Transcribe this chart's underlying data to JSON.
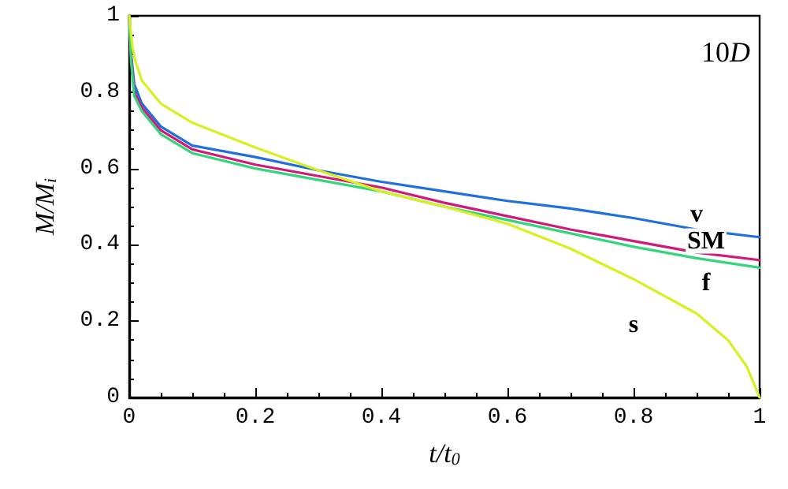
{
  "chart_data": {
    "type": "line",
    "xlabel": "t/t$_{0}$",
    "ylabel": "M/M$_{i}$",
    "annotations": [
      "10D"
    ],
    "xlim": [
      0,
      1
    ],
    "ylim": [
      0,
      1
    ],
    "xticks": [
      0,
      0.2,
      0.4,
      0.6,
      0.8,
      1
    ],
    "yticks": [
      0,
      0.2,
      0.4,
      0.6,
      0.8,
      1
    ],
    "grid": false,
    "legend": false,
    "marker": "none",
    "line_style": "solid",
    "series": [
      {
        "name": "v",
        "color": "#1f6fe0",
        "x": [
          0,
          0.003,
          0.008,
          0.02,
          0.05,
          0.1,
          0.2,
          0.3,
          0.4,
          0.5,
          0.6,
          0.7,
          0.8,
          0.9,
          1
        ],
        "values": [
          1,
          0.9,
          0.82,
          0.77,
          0.71,
          0.66,
          0.63,
          0.595,
          0.565,
          0.54,
          0.515,
          0.495,
          0.47,
          0.44,
          0.42
        ]
      },
      {
        "name": "SM",
        "color": "#d4177a",
        "x": [
          0,
          0.003,
          0.008,
          0.02,
          0.05,
          0.1,
          0.2,
          0.3,
          0.4,
          0.5,
          0.6,
          0.7,
          0.8,
          0.9,
          1
        ],
        "values": [
          1,
          0.89,
          0.8,
          0.76,
          0.7,
          0.65,
          0.61,
          0.58,
          0.55,
          0.51,
          0.475,
          0.44,
          0.41,
          0.38,
          0.36
        ]
      },
      {
        "name": "f",
        "color": "#33d67a",
        "x": [
          0,
          0.003,
          0.008,
          0.02,
          0.05,
          0.1,
          0.2,
          0.3,
          0.4,
          0.5,
          0.6,
          0.7,
          0.8,
          0.9,
          1
        ],
        "values": [
          1,
          0.88,
          0.79,
          0.75,
          0.69,
          0.64,
          0.6,
          0.57,
          0.54,
          0.5,
          0.465,
          0.43,
          0.395,
          0.365,
          0.34
        ]
      },
      {
        "name": "s",
        "color": "#d8f020",
        "x": [
          0,
          0.005,
          0.01,
          0.02,
          0.05,
          0.1,
          0.2,
          0.3,
          0.4,
          0.5,
          0.6,
          0.7,
          0.8,
          0.9,
          0.95,
          0.98,
          1
        ],
        "values": [
          1,
          0.92,
          0.88,
          0.83,
          0.77,
          0.72,
          0.655,
          0.595,
          0.54,
          0.5,
          0.455,
          0.39,
          0.31,
          0.22,
          0.15,
          0.08,
          0
        ]
      }
    ]
  }
}
